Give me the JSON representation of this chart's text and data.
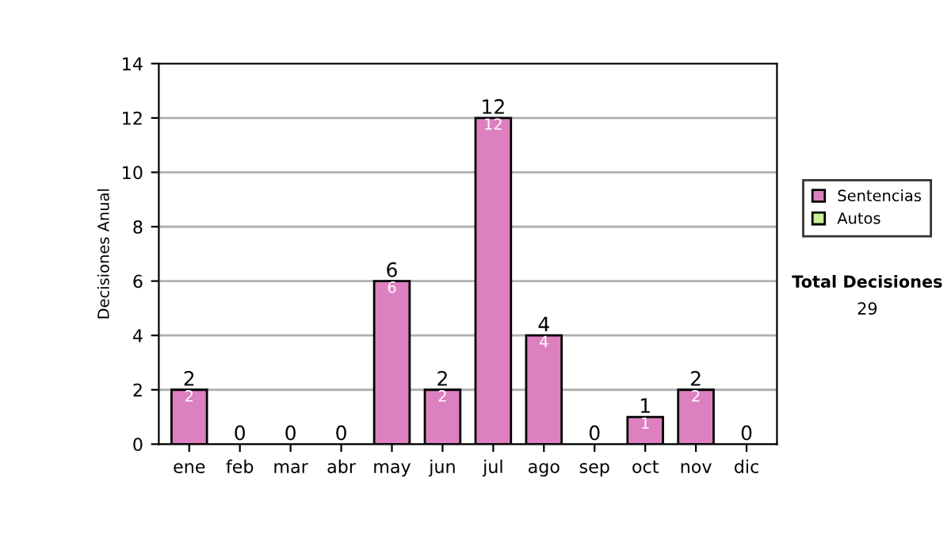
{
  "chart_data": {
    "type": "bar",
    "ylabel": "Decisiones Anual",
    "categories": [
      "ene",
      "feb",
      "mar",
      "abr",
      "may",
      "jun",
      "jul",
      "ago",
      "sep",
      "oct",
      "nov",
      "dic"
    ],
    "series": [
      {
        "name": "Sentencias",
        "color": "#dd80c0",
        "values": [
          2,
          0,
          0,
          0,
          6,
          2,
          12,
          4,
          0,
          1,
          2,
          0
        ],
        "value_labels": [
          "2",
          null,
          null,
          null,
          "6",
          "2",
          "12",
          "4",
          null,
          "1",
          "2",
          null
        ]
      },
      {
        "name": "Autos",
        "color": "#ccee99",
        "values": [
          0,
          0,
          0,
          0,
          0,
          0,
          0,
          0,
          0,
          0,
          0,
          0
        ]
      }
    ],
    "stacked": true,
    "totals": [
      "2",
      "0",
      "0",
      "0",
      "6",
      "2",
      "12",
      "4",
      "0",
      "1",
      "2",
      "0"
    ],
    "ylim": [
      0,
      14
    ],
    "yticks": [
      0,
      2,
      4,
      6,
      8,
      10,
      12,
      14
    ],
    "grid": "y",
    "legend": "right",
    "annotations": [
      "Total Decisiones",
      "29"
    ]
  }
}
